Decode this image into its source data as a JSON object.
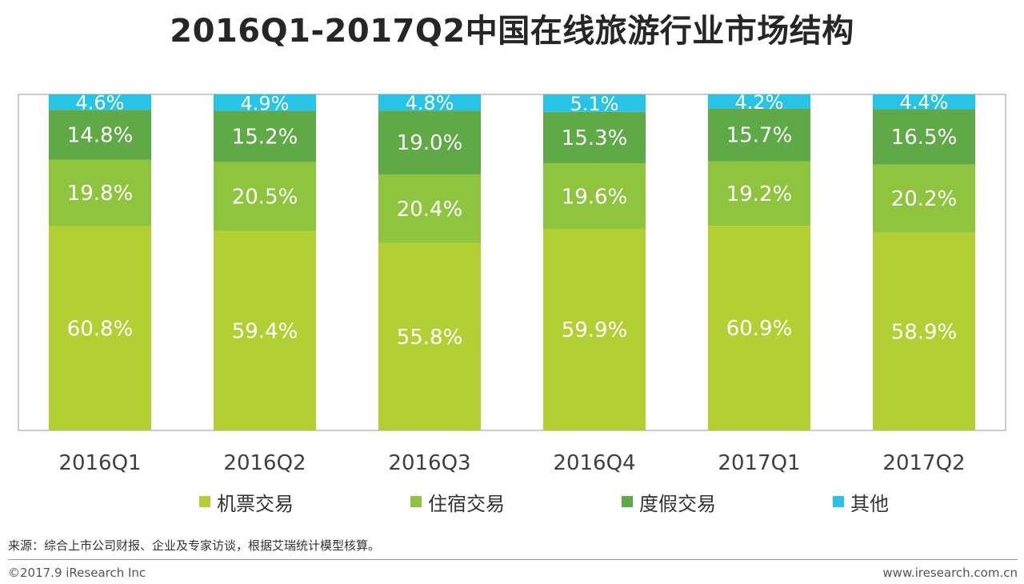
{
  "colors": {
    "airfare": "#b3cf34",
    "hotel": "#8fc43e",
    "vacation": "#5faa46",
    "other": "#28c4e8"
  },
  "chart_data": {
    "type": "bar",
    "stacked": true,
    "title": "2016Q1-2017Q2中国在线旅游行业市场结构",
    "categories": [
      "2016Q1",
      "2016Q2",
      "2016Q3",
      "2016Q4",
      "2017Q1",
      "2017Q2"
    ],
    "ylim": [
      0,
      100
    ],
    "unit": "%",
    "series": [
      {
        "key": "airfare",
        "name": "机票交易",
        "values": [
          60.8,
          59.4,
          55.8,
          59.9,
          60.9,
          58.9
        ]
      },
      {
        "key": "hotel",
        "name": "住宿交易",
        "values": [
          19.8,
          20.5,
          20.4,
          19.6,
          19.2,
          20.2
        ]
      },
      {
        "key": "vacation",
        "name": "度假交易",
        "values": [
          14.8,
          15.2,
          19.0,
          15.3,
          15.7,
          16.5
        ]
      },
      {
        "key": "other",
        "name": "其他",
        "values": [
          4.6,
          4.9,
          4.8,
          5.1,
          4.2,
          4.4
        ]
      }
    ],
    "legend_position": "bottom"
  },
  "footer": {
    "source": "来源：综合上市公司财报、企业及专家访谈，根据艾瑞统计模型核算。",
    "copyright": "©2017.9 iResearch Inc",
    "website": "www.iresearch.com.cn"
  }
}
